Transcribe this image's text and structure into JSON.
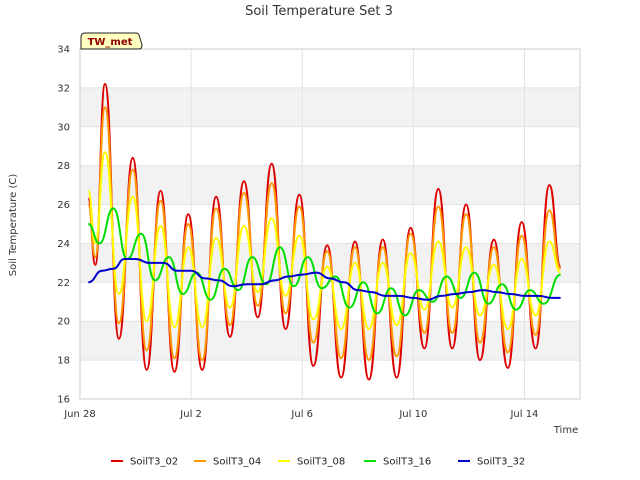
{
  "chart_data": {
    "type": "line",
    "title": "Soil Temperature Set 3",
    "xlabel": "Time",
    "ylabel": "Soil Temperature (C)",
    "site_badge": "TW_met",
    "ylim": [
      16,
      34
    ],
    "xlim": [
      0,
      18
    ],
    "y_ticks": [
      16,
      18,
      20,
      22,
      24,
      26,
      28,
      30,
      32,
      34
    ],
    "x_ticks": [
      {
        "value": 0,
        "label": "Jun 28"
      },
      {
        "value": 4,
        "label": "Jul 2"
      },
      {
        "value": 8,
        "label": "Jul 6"
      },
      {
        "value": 12,
        "label": "Jul 10"
      },
      {
        "value": 16,
        "label": "Jul 14"
      }
    ],
    "grid": true,
    "legend_position": "bottom",
    "series": [
      {
        "name": "SoilT3_02",
        "color": "#dd0000",
        "x": [
          0.3,
          0.55,
          0.9,
          1.4,
          1.9,
          2.4,
          2.9,
          3.4,
          3.9,
          4.4,
          4.9,
          5.4,
          5.9,
          6.4,
          6.9,
          7.4,
          7.9,
          8.4,
          8.9,
          9.4,
          9.9,
          10.4,
          10.9,
          11.4,
          11.9,
          12.4,
          12.9,
          13.4,
          13.9,
          14.4,
          14.9,
          15.4,
          15.9,
          16.4,
          16.9,
          17.3
        ],
        "y": [
          26.3,
          22.9,
          32.2,
          19.1,
          28.4,
          17.5,
          26.7,
          17.4,
          25.5,
          17.5,
          26.4,
          19.2,
          27.2,
          20.2,
          28.1,
          19.6,
          26.5,
          17.7,
          23.9,
          17.1,
          24.1,
          17.0,
          24.2,
          17.1,
          24.8,
          18.6,
          26.8,
          18.6,
          26.0,
          18.0,
          24.2,
          17.6,
          25.1,
          18.6,
          27.0,
          22.8
        ]
      },
      {
        "name": "SoilT3_04",
        "color": "#ff9900",
        "x": [
          0.3,
          0.55,
          0.9,
          1.4,
          1.9,
          2.4,
          2.9,
          3.4,
          3.9,
          4.4,
          4.9,
          5.4,
          5.9,
          6.4,
          6.9,
          7.4,
          7.9,
          8.4,
          8.9,
          9.4,
          9.9,
          10.4,
          10.9,
          11.4,
          11.9,
          12.4,
          12.9,
          13.4,
          13.9,
          14.4,
          14.9,
          15.4,
          15.9,
          16.4,
          16.9,
          17.3
        ],
        "y": [
          26.0,
          23.3,
          31.0,
          19.9,
          27.8,
          18.5,
          26.2,
          18.1,
          25.0,
          18.0,
          25.8,
          19.8,
          26.6,
          20.8,
          27.1,
          20.4,
          25.9,
          18.9,
          23.6,
          18.1,
          23.8,
          18.0,
          23.8,
          18.2,
          24.5,
          19.4,
          25.9,
          19.4,
          25.5,
          18.9,
          23.8,
          18.4,
          24.4,
          19.3,
          25.7,
          22.7
        ]
      },
      {
        "name": "SoilT3_08",
        "color": "#ffff00",
        "x": [
          0.3,
          0.55,
          0.9,
          1.4,
          1.9,
          2.4,
          2.9,
          3.4,
          3.9,
          4.4,
          4.9,
          5.4,
          5.9,
          6.4,
          6.9,
          7.4,
          7.9,
          8.4,
          8.9,
          9.4,
          9.9,
          10.4,
          10.9,
          11.4,
          11.9,
          12.4,
          12.9,
          13.4,
          13.9,
          14.4,
          14.9,
          15.4,
          15.9,
          16.4,
          16.9,
          17.3
        ],
        "y": [
          26.7,
          24.0,
          28.7,
          21.4,
          26.4,
          20.0,
          24.9,
          19.7,
          23.8,
          19.7,
          24.3,
          20.7,
          24.9,
          21.5,
          25.3,
          21.3,
          24.4,
          20.1,
          22.8,
          19.6,
          23.0,
          19.6,
          23.0,
          19.8,
          23.5,
          20.6,
          24.1,
          20.7,
          23.8,
          20.3,
          22.9,
          19.6,
          23.2,
          20.3,
          24.1,
          22.5
        ]
      },
      {
        "name": "SoilT3_16",
        "color": "#00dd00",
        "x": [
          0.3,
          0.7,
          1.2,
          1.7,
          2.2,
          2.7,
          3.2,
          3.7,
          4.2,
          4.7,
          5.2,
          5.7,
          6.2,
          6.7,
          7.2,
          7.7,
          8.2,
          8.7,
          9.2,
          9.7,
          10.2,
          10.7,
          11.2,
          11.7,
          12.2,
          12.7,
          13.2,
          13.7,
          14.2,
          14.7,
          15.2,
          15.7,
          16.2,
          16.7,
          17.3
        ],
        "y": [
          25.0,
          24.0,
          25.8,
          23.2,
          24.5,
          22.1,
          23.3,
          21.4,
          22.5,
          21.1,
          22.7,
          21.6,
          23.3,
          21.9,
          23.8,
          21.8,
          23.3,
          21.7,
          22.3,
          20.7,
          22.0,
          20.4,
          21.7,
          20.3,
          21.6,
          21.0,
          22.3,
          21.2,
          22.5,
          20.9,
          21.9,
          20.6,
          21.6,
          20.9,
          22.4
        ]
      },
      {
        "name": "SoilT3_32",
        "color": "#0000cc",
        "x": [
          0.3,
          0.8,
          1.2,
          1.6,
          2.0,
          2.5,
          3.0,
          3.5,
          4.0,
          4.5,
          5.0,
          5.5,
          6.0,
          6.5,
          7.0,
          7.5,
          8.0,
          8.5,
          9.0,
          9.5,
          10.0,
          10.5,
          11.0,
          11.5,
          12.0,
          12.5,
          13.0,
          13.5,
          14.0,
          14.5,
          15.0,
          15.5,
          16.0,
          16.5,
          17.0,
          17.3
        ],
        "y": [
          22.0,
          22.6,
          22.7,
          23.2,
          23.2,
          23.0,
          23.0,
          22.6,
          22.6,
          22.2,
          22.1,
          21.8,
          21.9,
          21.9,
          22.1,
          22.3,
          22.4,
          22.5,
          22.2,
          22.0,
          21.6,
          21.5,
          21.3,
          21.3,
          21.2,
          21.1,
          21.3,
          21.4,
          21.5,
          21.6,
          21.5,
          21.4,
          21.3,
          21.3,
          21.2,
          21.2
        ]
      }
    ]
  }
}
